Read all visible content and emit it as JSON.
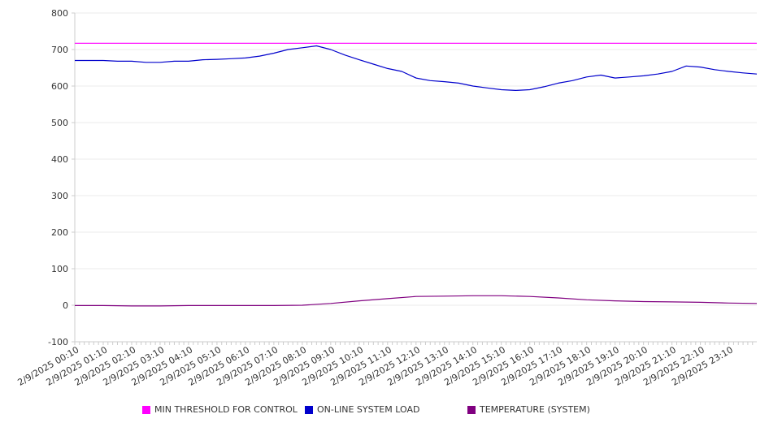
{
  "chart_data": {
    "type": "line",
    "title": "",
    "xlabel": "",
    "ylabel": "",
    "ylim": [
      -100,
      800
    ],
    "y_ticks": [
      -100,
      0,
      100,
      200,
      300,
      400,
      500,
      600,
      700,
      800
    ],
    "x_tick_labels": [
      "2/9/2025 00:10",
      "2/9/2025 01:10",
      "2/9/2025 02:10",
      "2/9/2025 03:10",
      "2/9/2025 04:10",
      "2/9/2025 05:10",
      "2/9/2025 06:10",
      "2/9/2025 07:10",
      "2/9/2025 08:10",
      "2/9/2025 09:10",
      "2/9/2025 10:10",
      "2/9/2025 11:10",
      "2/9/2025 12:10",
      "2/9/2025 13:10",
      "2/9/2025 14:10",
      "2/9/2025 15:10",
      "2/9/2025 16:10",
      "2/9/2025 17:10",
      "2/9/2025 18:10",
      "2/9/2025 19:10",
      "2/9/2025 20:10",
      "2/9/2025 21:10",
      "2/9/2025 22:10",
      "2/9/2025 23:10"
    ],
    "grid": true,
    "legend_position": "bottom",
    "series": [
      {
        "name": "MIN THRESHOLD FOR CONTROL",
        "color": "#ff00ff",
        "x": [
          "2/9/2025 00:00",
          "2/9/2025 23:59"
        ],
        "values": [
          717,
          717
        ]
      },
      {
        "name": "ON-LINE SYSTEM LOAD",
        "color": "#0000cc",
        "x": [
          "2/9/2025 00:00",
          "2/9/2025 00:30",
          "2/9/2025 01:00",
          "2/9/2025 01:30",
          "2/9/2025 02:00",
          "2/9/2025 02:30",
          "2/9/2025 03:00",
          "2/9/2025 03:30",
          "2/9/2025 04:00",
          "2/9/2025 04:30",
          "2/9/2025 05:00",
          "2/9/2025 05:30",
          "2/9/2025 06:00",
          "2/9/2025 06:30",
          "2/9/2025 07:00",
          "2/9/2025 07:30",
          "2/9/2025 08:00",
          "2/9/2025 08:30",
          "2/9/2025 09:00",
          "2/9/2025 09:30",
          "2/9/2025 10:00",
          "2/9/2025 10:30",
          "2/9/2025 11:00",
          "2/9/2025 11:30",
          "2/9/2025 12:00",
          "2/9/2025 12:30",
          "2/9/2025 13:00",
          "2/9/2025 13:30",
          "2/9/2025 14:00",
          "2/9/2025 14:30",
          "2/9/2025 15:00",
          "2/9/2025 15:30",
          "2/9/2025 16:00",
          "2/9/2025 16:30",
          "2/9/2025 17:00",
          "2/9/2025 17:30",
          "2/9/2025 18:00",
          "2/9/2025 18:30",
          "2/9/2025 19:00",
          "2/9/2025 19:30",
          "2/9/2025 20:00",
          "2/9/2025 20:30",
          "2/9/2025 21:00",
          "2/9/2025 21:30",
          "2/9/2025 22:00",
          "2/9/2025 22:30",
          "2/9/2025 23:00",
          "2/9/2025 23:30",
          "2/9/2025 23:59"
        ],
        "values": [
          670,
          670,
          670,
          668,
          668,
          665,
          665,
          668,
          668,
          672,
          673,
          675,
          677,
          682,
          690,
          700,
          705,
          710,
          700,
          685,
          672,
          660,
          648,
          640,
          622,
          615,
          612,
          608,
          600,
          595,
          590,
          588,
          590,
          598,
          608,
          615,
          625,
          630,
          622,
          625,
          628,
          633,
          640,
          655,
          652,
          645,
          640,
          636,
          633
        ]
      },
      {
        "name": "TEMPERATURE (SYSTEM)",
        "color": "#800080",
        "x": [
          "2/9/2025 00:00",
          "2/9/2025 01:00",
          "2/9/2025 02:00",
          "2/9/2025 03:00",
          "2/9/2025 04:00",
          "2/9/2025 05:00",
          "2/9/2025 06:00",
          "2/9/2025 07:00",
          "2/9/2025 08:00",
          "2/9/2025 09:00",
          "2/9/2025 10:00",
          "2/9/2025 11:00",
          "2/9/2025 12:00",
          "2/9/2025 13:00",
          "2/9/2025 14:00",
          "2/9/2025 15:00",
          "2/9/2025 16:00",
          "2/9/2025 17:00",
          "2/9/2025 18:00",
          "2/9/2025 19:00",
          "2/9/2025 20:00",
          "2/9/2025 21:00",
          "2/9/2025 22:00",
          "2/9/2025 23:00",
          "2/9/2025 23:59"
        ],
        "values": [
          -1,
          -1,
          -2,
          -2,
          -1,
          -1,
          -1,
          -1,
          0,
          5,
          12,
          18,
          24,
          25,
          26,
          26,
          24,
          20,
          15,
          12,
          10,
          9,
          8,
          6,
          5
        ]
      }
    ]
  }
}
